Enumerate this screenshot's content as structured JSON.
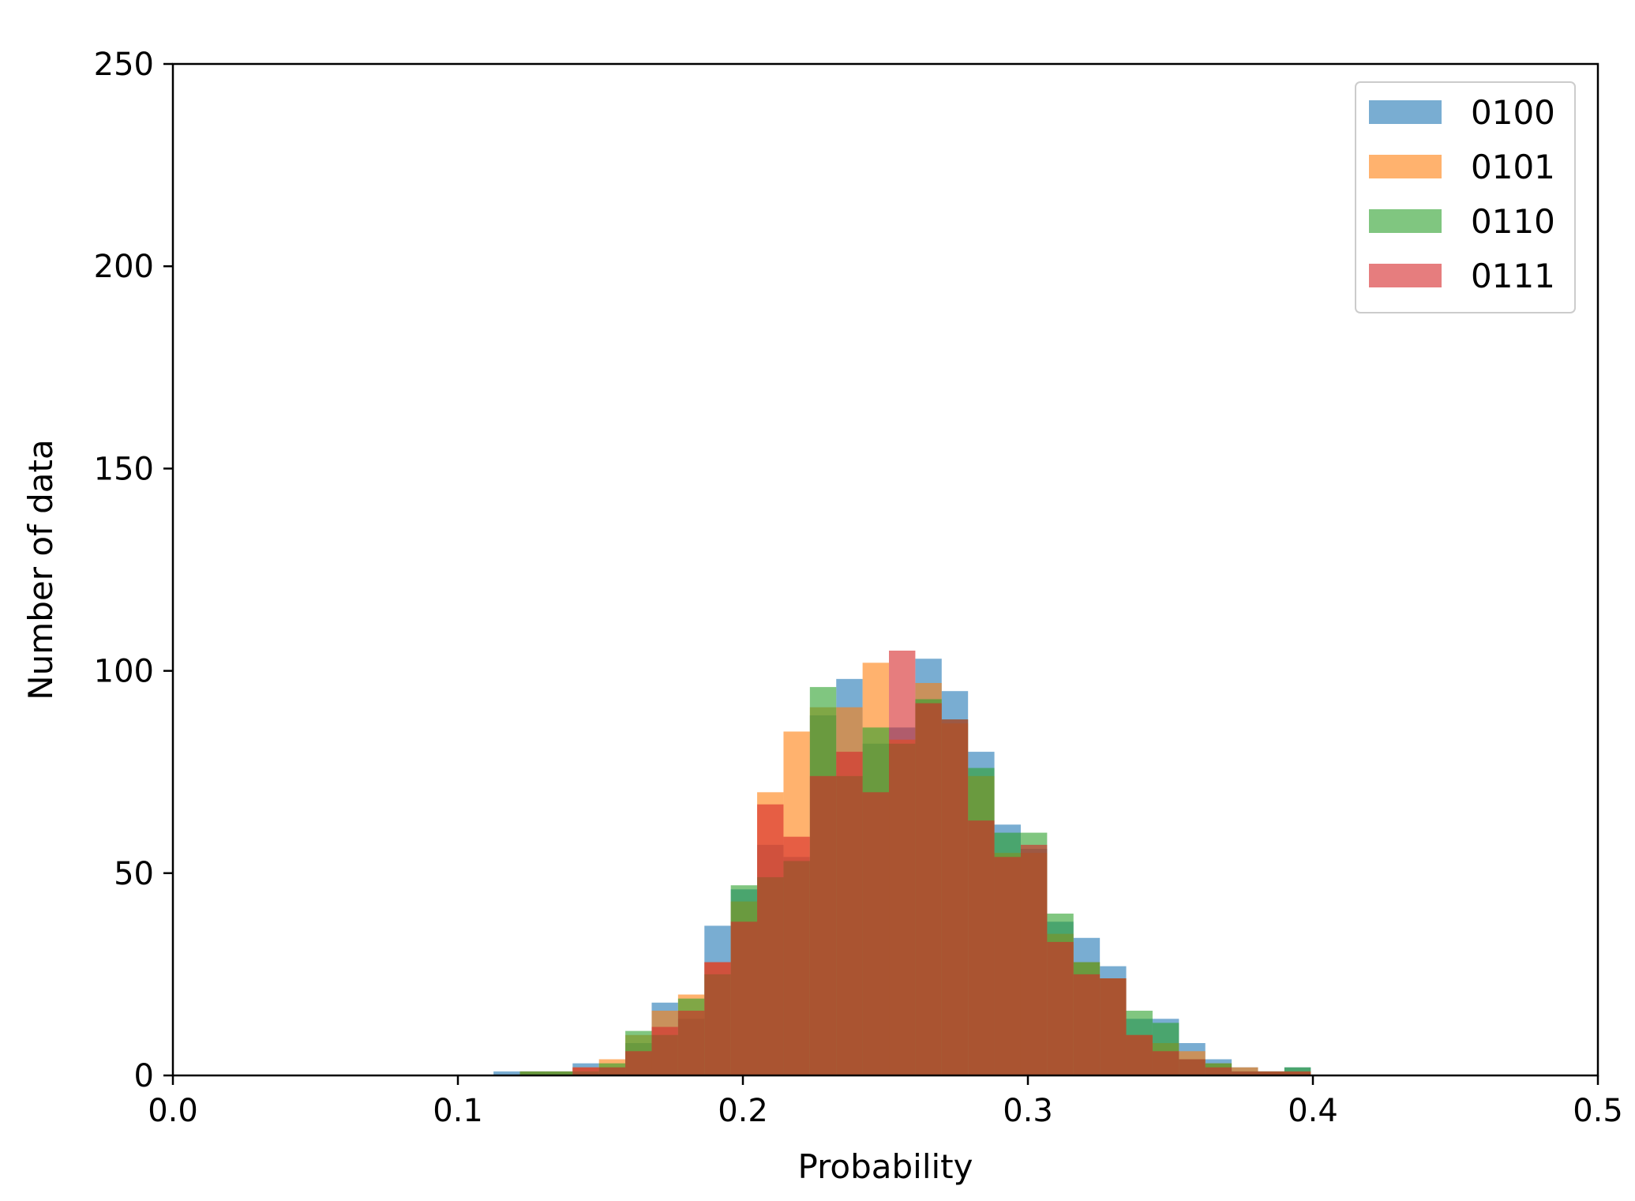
{
  "chart_data": {
    "type": "bar",
    "subtype": "overlapping-histogram",
    "title": "",
    "xlabel": "Probability",
    "ylabel": "Number of data",
    "xlim": [
      0.0,
      0.5
    ],
    "ylim": [
      0,
      250
    ],
    "xticks": [
      "0.0",
      "0.1",
      "0.2",
      "0.3",
      "0.4",
      "0.5"
    ],
    "yticks": [
      "0",
      "50",
      "100",
      "150",
      "200",
      "250"
    ],
    "bin_width": 0.00925,
    "bin_edges_start": 0.1125,
    "legend_position": "upper-right",
    "grid": false,
    "series": [
      {
        "name": "0100",
        "color": "#1f77b4",
        "values": [
          1,
          1,
          1,
          3,
          2,
          8,
          18,
          14,
          37,
          46,
          57,
          54,
          89,
          98,
          82,
          86,
          103,
          95,
          80,
          62,
          56,
          38,
          34,
          27,
          14,
          14,
          8,
          4,
          2,
          1,
          2
        ]
      },
      {
        "name": "0101",
        "color": "#ff7f0e",
        "values": [
          0,
          1,
          1,
          2,
          4,
          10,
          16,
          20,
          28,
          43,
          70,
          85,
          91,
          91,
          102,
          83,
          97,
          87,
          74,
          55,
          55,
          35,
          28,
          24,
          10,
          8,
          6,
          3,
          2,
          1,
          1
        ]
      },
      {
        "name": "0110",
        "color": "#2ca02c",
        "values": [
          0,
          1,
          1,
          1,
          3,
          11,
          10,
          19,
          25,
          47,
          49,
          53,
          96,
          74,
          86,
          82,
          93,
          88,
          76,
          60,
          60,
          40,
          28,
          24,
          16,
          13,
          4,
          3,
          1,
          1,
          2
        ]
      },
      {
        "name": "0111",
        "color": "#d62728",
        "values": [
          0,
          0,
          0,
          2,
          2,
          6,
          12,
          16,
          28,
          38,
          67,
          59,
          74,
          80,
          70,
          105,
          92,
          88,
          63,
          54,
          57,
          33,
          25,
          24,
          10,
          6,
          4,
          2,
          1,
          1,
          1
        ]
      }
    ]
  }
}
